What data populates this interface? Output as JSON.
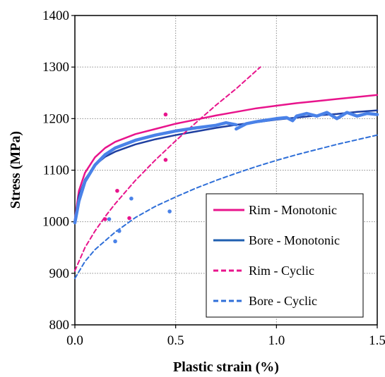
{
  "chart_data": {
    "type": "line",
    "title": "",
    "xlabel": "Plastic strain (%)",
    "ylabel": "Stress (MPa)",
    "xlim": [
      0.0,
      1.5
    ],
    "ylim": [
      800,
      1400
    ],
    "xticks": [
      0.0,
      0.5,
      1.0,
      1.5
    ],
    "xtick_labels": [
      "0.0",
      "0.5",
      "1.0",
      "1.5"
    ],
    "yticks": [
      800,
      900,
      1000,
      1100,
      1200,
      1300,
      1400
    ],
    "ytick_labels": [
      "800",
      "900",
      "1000",
      "1100",
      "1200",
      "1300",
      "1400"
    ],
    "grid": true,
    "legend_position": "bottom-right",
    "series": [
      {
        "name": "Rim - Monotonic",
        "color": "#e8148c",
        "style": "solid",
        "x": [
          0.0,
          0.02,
          0.05,
          0.1,
          0.15,
          0.2,
          0.3,
          0.4,
          0.5,
          0.6,
          0.7,
          0.8,
          0.9,
          1.0,
          1.1,
          1.2,
          1.3,
          1.4,
          1.5
        ],
        "y": [
          1005,
          1060,
          1095,
          1125,
          1143,
          1155,
          1170,
          1180,
          1190,
          1198,
          1206,
          1213,
          1220,
          1225,
          1230,
          1234,
          1238,
          1242,
          1246
        ]
      },
      {
        "name": "Bore - Monotonic",
        "color": "#1f3fa0",
        "style": "solid",
        "x": [
          0.0,
          0.02,
          0.05,
          0.1,
          0.15,
          0.2,
          0.3,
          0.4,
          0.5,
          0.6,
          0.7,
          0.8,
          0.9,
          1.0,
          1.1,
          1.2,
          1.3,
          1.4,
          1.5
        ],
        "y": [
          1000,
          1050,
          1082,
          1110,
          1126,
          1136,
          1150,
          1160,
          1168,
          1175,
          1182,
          1188,
          1193,
          1198,
          1202,
          1206,
          1209,
          1213,
          1216
        ]
      },
      {
        "name": "Rim - Cyclic",
        "color": "#e8148c",
        "style": "dashed",
        "x": [
          0.0,
          0.05,
          0.1,
          0.15,
          0.2,
          0.3,
          0.4,
          0.5,
          0.6,
          0.7,
          0.8,
          0.92
        ],
        "y": [
          905,
          950,
          982,
          1010,
          1035,
          1080,
          1120,
          1157,
          1192,
          1226,
          1258,
          1300
        ]
      },
      {
        "name": "Bore - Cyclic",
        "color": "#2f6fd8",
        "style": "dashed",
        "x": [
          0.0,
          0.05,
          0.1,
          0.2,
          0.3,
          0.4,
          0.5,
          0.6,
          0.7,
          0.8,
          0.9,
          1.0,
          1.1,
          1.2,
          1.3,
          1.4,
          1.5
        ],
        "y": [
          890,
          923,
          946,
          980,
          1008,
          1030,
          1048,
          1065,
          1080,
          1094,
          1107,
          1119,
          1130,
          1140,
          1150,
          1159,
          1168
        ]
      },
      {
        "name": "",
        "color": "#4a82e8",
        "style": "thick",
        "x": [
          0.0,
          0.02,
          0.05,
          0.1,
          0.15,
          0.2,
          0.3,
          0.4,
          0.5,
          0.6,
          0.7,
          0.75,
          0.8
        ],
        "y": [
          998,
          1040,
          1078,
          1110,
          1130,
          1143,
          1158,
          1168,
          1176,
          1182,
          1187,
          1192,
          1188
        ]
      },
      {
        "name": "",
        "color": "#4a82e8",
        "style": "thick",
        "x": [
          0.8,
          0.85,
          0.9,
          0.95,
          1.0,
          1.05,
          1.08,
          1.1,
          1.15,
          1.2,
          1.25,
          1.3,
          1.35,
          1.4,
          1.45,
          1.5
        ],
        "y": [
          1180,
          1190,
          1194,
          1197,
          1200,
          1202,
          1196,
          1205,
          1210,
          1205,
          1212,
          1200,
          1212,
          1205,
          1210,
          1208
        ]
      }
    ],
    "scatter": [
      {
        "name": "",
        "color": "#e8148c",
        "x": [
          0.15,
          0.21,
          0.27,
          0.45,
          0.45
        ],
        "y": [
          1005,
          1060,
          1007,
          1120,
          1208
        ]
      },
      {
        "name": "",
        "color": "#4a82e8",
        "x": [
          0.17,
          0.2,
          0.22,
          0.28,
          0.47
        ],
        "y": [
          1005,
          962,
          982,
          1045,
          1020
        ]
      }
    ]
  },
  "legend": [
    {
      "label": "Rim - Monotonic",
      "color": "#e8148c",
      "style": "solid"
    },
    {
      "label": "Bore - Monotonic",
      "color": "#1f5fb0",
      "style": "solid"
    },
    {
      "label": "Rim - Cyclic",
      "color": "#e8148c",
      "style": "dashed"
    },
    {
      "label": "Bore - Cyclic",
      "color": "#2f6fd8",
      "style": "dashed"
    }
  ]
}
